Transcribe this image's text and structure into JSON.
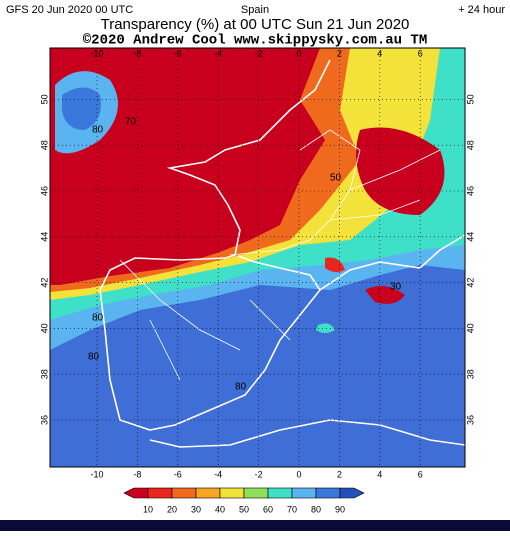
{
  "header": {
    "run": "GFS 20 Jun 2020 00 UTC",
    "region": "Spain",
    "lead": "+ 24 hour",
    "title": "Transparency (%) at 00 UTC Sun 21 Jun 2020",
    "credit": "©2020 Andrew Cool  www.skippysky.com.au  TM"
  },
  "map": {
    "lon_ticks": [
      -10,
      -8,
      -6,
      -4,
      -2,
      0,
      2,
      4,
      6
    ],
    "lat_ticks": [
      36,
      38,
      40,
      42,
      44,
      46,
      48,
      50
    ],
    "contour_labels": [
      "80",
      "70",
      "80",
      "30",
      "50",
      "80",
      "80"
    ]
  },
  "colorbar": {
    "labels": [
      10,
      20,
      30,
      40,
      50,
      60,
      70,
      80,
      90
    ],
    "colors": [
      "#c8001e",
      "#e8281e",
      "#f06a1e",
      "#f5a623",
      "#f2e23a",
      "#8ee05a",
      "#3ee0c8",
      "#5ab4f0",
      "#3a78dc",
      "#2450b8"
    ]
  }
}
